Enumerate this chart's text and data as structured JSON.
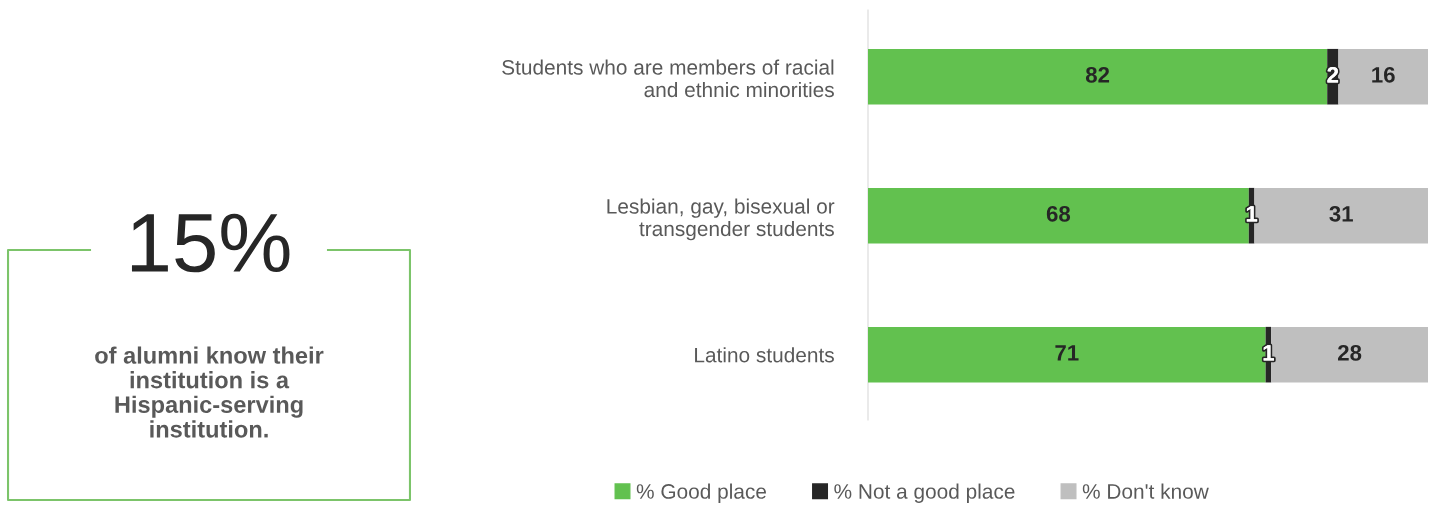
{
  "chart_data": [
    {
      "type": "other",
      "title": "15%",
      "annotations": [
        "of alumni know their\ninstitution is a\nHispanic-serving\ninstitution."
      ]
    },
    {
      "type": "bar",
      "orientation": "horizontal",
      "stacked": true,
      "categories": [
        "Students who are members of racial\nand ethnic minorities",
        "Lesbian, gay, bisexual or\ntransgender students",
        "Latino students"
      ],
      "series": [
        {
          "name": "% Good place",
          "color": "#62c14f",
          "values": [
            82,
            68,
            71
          ]
        },
        {
          "name": "% Not a good place",
          "color": "#262626",
          "values": [
            2,
            1,
            1
          ]
        },
        {
          "name": "% Don't know",
          "color": "#bfbfbf",
          "values": [
            16,
            31,
            28
          ]
        }
      ],
      "xlim": [
        0,
        100
      ],
      "data_labels": true,
      "legend": "bottom",
      "tick_labels": false,
      "grid": false
    }
  ]
}
